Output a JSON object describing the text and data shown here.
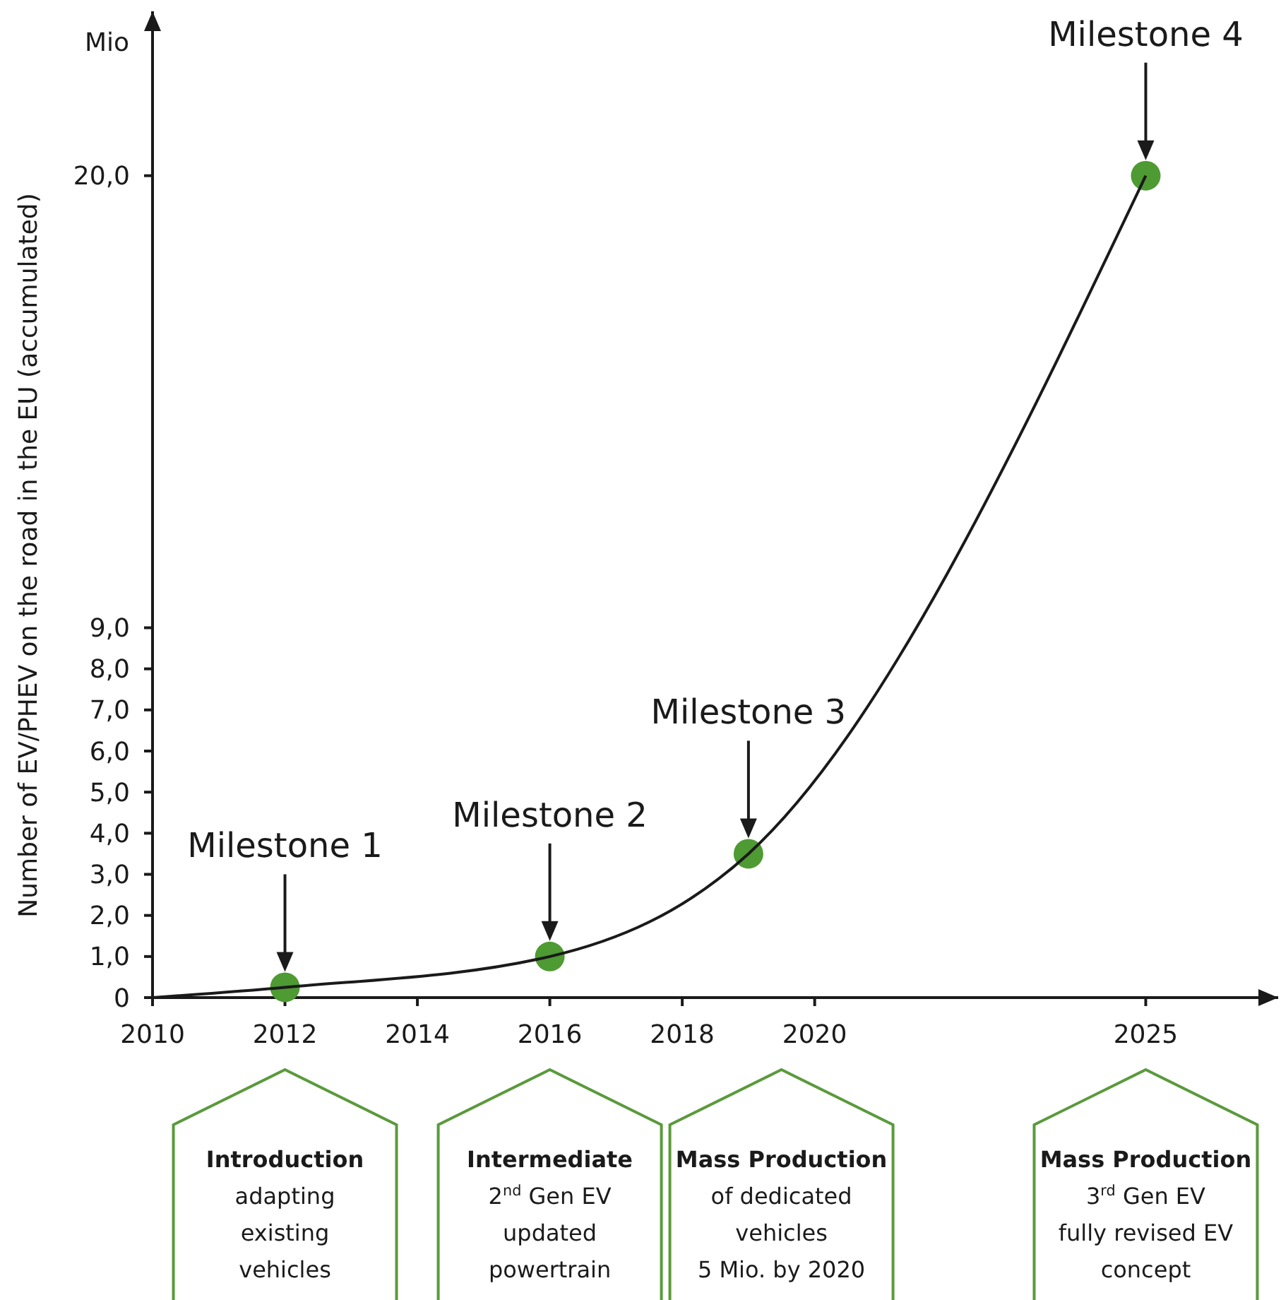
{
  "chart_data": {
    "type": "line",
    "ylabel": "Number of EV/PHEV on the road in the EU (accumulated)",
    "xlim": [
      2010,
      2027
    ],
    "xticks": [
      2010,
      2012,
      2014,
      2016,
      2018,
      2020,
      2025
    ],
    "ylim": [
      0,
      24
    ],
    "yticks": [
      0,
      {
        "value": 1,
        "label": "1,0"
      },
      {
        "value": 2,
        "label": "2,0"
      },
      {
        "value": 3,
        "label": "3,0"
      },
      {
        "value": 4,
        "label": "4,0"
      },
      {
        "value": 5,
        "label": "5,0"
      },
      {
        "value": 6,
        "label": "6,0"
      },
      {
        "value": 7,
        "label": "7,0"
      },
      {
        "value": 8,
        "label": "8,0"
      },
      {
        "value": 9,
        "label": "9,0"
      },
      {
        "value": 20,
        "label": "20,0"
      }
    ],
    "series": [
      {
        "type": "line",
        "color": "#1a1a1a",
        "marker": "none",
        "x": [
          2010,
          2012,
          2016,
          2019,
          2025
        ],
        "values": [
          0,
          0.25,
          1.0,
          3.5,
          20
        ]
      },
      {
        "type": "scatter",
        "color": "#4e9a33",
        "marker": "circle",
        "x": [
          2012,
          2016,
          2019,
          2025
        ],
        "values": [
          0.25,
          1.0,
          3.5,
          20
        ]
      }
    ],
    "annotations": [
      "Mio",
      "Milestone 1",
      "Milestone 2",
      "Milestone 3",
      "Milestone 4",
      "Introduction\nadapting\nexisting\nvehicles",
      "Intermediate\n2$^{nd}$ Gen EV\nupdated\npowertrain",
      "Mass Production\nof dedicated\nvehicles\n5 Mio. by 2020",
      "Mass Production\n3$^{rd}$ Gen EV\nfully revised EV\nconcept"
    ]
  }
}
